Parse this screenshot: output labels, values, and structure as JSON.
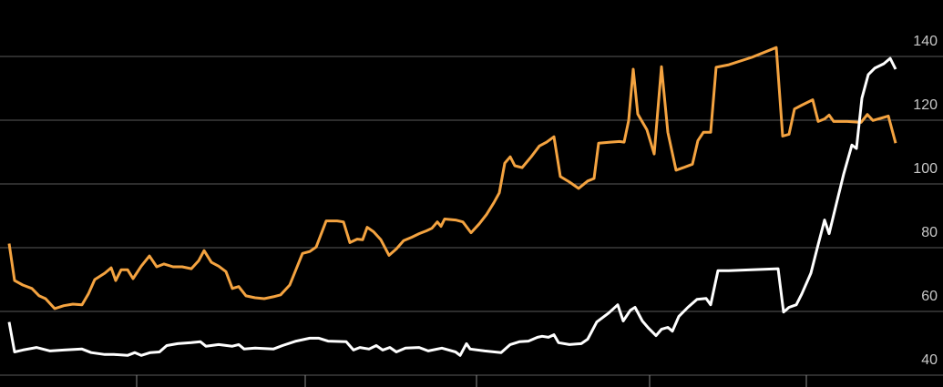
{
  "chart_data": {
    "type": "line",
    "background": "#000000",
    "grid": true,
    "xlim": [
      0,
      103.5
    ],
    "xticks": [
      15,
      33.5,
      52.3,
      71.3,
      88.5
    ],
    "ylim": [
      36.3,
      157.7
    ],
    "yticks": [
      40,
      60,
      80,
      100,
      120,
      140
    ],
    "series": [
      {
        "color": "#f4a340",
        "x": [
          1,
          1.6,
          2.5,
          3.5,
          4.3,
          5,
          6,
          7,
          8,
          9,
          9.7,
          10.4,
          11.5,
          12.2,
          12.7,
          13.3,
          14,
          14.6,
          15.5,
          16.4,
          17.2,
          18,
          19,
          20,
          21,
          21.8,
          22.4,
          23.2,
          24,
          24.8,
          25.5,
          26.2,
          27,
          28,
          29,
          30,
          30.8,
          31.8,
          33.2,
          34,
          34.7,
          35.8,
          37,
          37.7,
          38.4,
          39.2,
          39.8,
          40.3,
          41,
          41.8,
          42.7,
          43.5,
          44.3,
          45.2,
          46,
          46.8,
          47.4,
          48,
          48.4,
          48.8,
          50,
          50.8,
          51.7,
          52.6,
          53.4,
          54.2,
          54.8,
          55.4,
          56,
          56.5,
          57.3,
          58.3,
          59.2,
          60,
          60.8,
          61.5,
          62.5,
          63.5,
          64.5,
          65.2,
          65.7,
          67,
          68,
          68.5,
          69,
          69.5,
          70,
          71,
          71.8,
          72.6,
          73.3,
          74.2,
          75,
          76,
          76.6,
          77.2,
          78,
          78.6,
          80,
          82.5,
          85.2,
          85.9,
          86.6,
          87.2,
          88,
          89.2,
          89.8,
          90.5,
          91,
          91.5,
          93,
          94.5,
          95.2,
          95.8,
          96.8,
          97.5,
          98.3
        ],
        "values": [
          81.3,
          69.7,
          68.3,
          67.2,
          64.9,
          64.0,
          60.9,
          61.8,
          62.3,
          62.1,
          65.5,
          70.0,
          72.0,
          73.7,
          69.7,
          73.1,
          73.1,
          70.3,
          74.2,
          77.4,
          74.0,
          74.9,
          74.0,
          74.0,
          73.4,
          75.9,
          79.1,
          75.4,
          74.2,
          72.5,
          67.2,
          67.8,
          64.9,
          64.3,
          64.0,
          64.6,
          65.2,
          68.3,
          78.2,
          78.8,
          80.2,
          88.4,
          88.4,
          88.1,
          81.6,
          82.7,
          82.5,
          86.4,
          85.0,
          82.5,
          77.6,
          79.6,
          82.2,
          83.3,
          84.4,
          85.3,
          86.1,
          88.1,
          86.7,
          89.0,
          88.7,
          88.1,
          84.7,
          87.5,
          90.4,
          94.1,
          97.2,
          106.5,
          108.5,
          105.7,
          105.1,
          108.5,
          111.9,
          113.1,
          114.8,
          102.3,
          100.6,
          98.6,
          100.9,
          101.7,
          112.8,
          113.1,
          113.3,
          113.1,
          119.9,
          136.0,
          121.9,
          117.0,
          109.4,
          136.8,
          116.2,
          104.3,
          105.1,
          106.2,
          113.6,
          116.2,
          116.2,
          136.6,
          137.4,
          139.7,
          142.8,
          115.0,
          115.6,
          123.5,
          124.7,
          126.4,
          119.6,
          120.4,
          121.6,
          119.6,
          119.6,
          119.3,
          121.8,
          119.9,
          120.7,
          121.3,
          112.8
        ]
      },
      {
        "color": "#ffffff",
        "x": [
          1,
          1.6,
          2.5,
          4,
          5.5,
          7,
          9,
          10,
          11.5,
          12.5,
          14,
          14.8,
          15.5,
          16.5,
          17.5,
          18.3,
          19.5,
          21,
          22,
          22.6,
          24,
          25.5,
          26.2,
          26.8,
          28,
          30,
          31,
          32.5,
          34,
          35,
          36,
          38,
          38.8,
          39.5,
          40.5,
          41.3,
          42,
          42.8,
          43.5,
          44.5,
          46,
          47,
          48.5,
          50,
          50.5,
          51.2,
          51.6,
          53.2,
          55,
          56,
          57,
          58,
          59,
          59.5,
          60.2,
          60.8,
          61.3,
          62.5,
          63.8,
          64.5,
          65.5,
          66.8,
          67.8,
          68.4,
          69.2,
          69.7,
          70.5,
          71.2,
          72,
          72.6,
          73.3,
          73.8,
          74.5,
          75.5,
          76.5,
          77.5,
          78,
          78.8,
          80,
          82.5,
          85.4,
          86,
          86.6,
          87.4,
          88,
          89,
          89.8,
          90.5,
          91,
          91.8,
          92.6,
          93.5,
          94,
          94.6,
          95.3,
          96,
          97,
          97.7,
          98.3
        ],
        "values": [
          56.7,
          47.3,
          47.9,
          48.7,
          47.6,
          47.9,
          48.2,
          47.1,
          46.5,
          46.5,
          46.2,
          47.1,
          46.2,
          47.1,
          47.3,
          49.3,
          49.9,
          50.2,
          50.5,
          49.1,
          49.6,
          49.1,
          49.6,
          48.2,
          48.5,
          48.2,
          49.3,
          50.7,
          51.6,
          51.6,
          50.7,
          50.5,
          47.9,
          48.7,
          48.2,
          49.3,
          47.9,
          48.7,
          47.3,
          48.5,
          48.7,
          47.6,
          48.5,
          47.3,
          46.2,
          49.9,
          48.2,
          47.6,
          47.1,
          49.6,
          50.5,
          50.7,
          51.9,
          52.2,
          51.9,
          52.7,
          50.2,
          49.6,
          49.9,
          51.3,
          56.7,
          59.5,
          62.1,
          57.0,
          60.4,
          61.3,
          57.0,
          54.7,
          52.4,
          54.4,
          55.0,
          53.8,
          58.4,
          61.3,
          63.8,
          64.1,
          62.1,
          72.8,
          72.8,
          73.1,
          73.4,
          59.8,
          61.3,
          62.1,
          65.5,
          72.0,
          81.0,
          88.7,
          84.4,
          93.8,
          103.1,
          112.2,
          111.1,
          126.9,
          134.3,
          136.3,
          137.7,
          139.4,
          136.0
        ]
      }
    ]
  }
}
